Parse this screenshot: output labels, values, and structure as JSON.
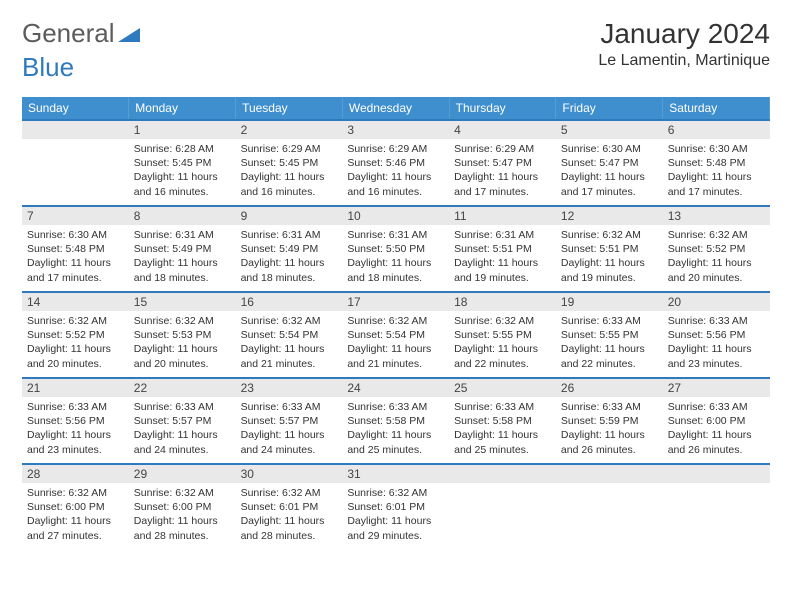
{
  "logo": {
    "word1": "General",
    "word2": "Blue",
    "icon_color": "#2f7abf",
    "text_color": "#5c5c5c"
  },
  "title": {
    "month": "January 2024",
    "location": "Le Lamentin, Martinique"
  },
  "header_bg": "#3f8fcf",
  "border_color": "#2f7abf",
  "daynum_bg": "#e9e9e9",
  "weekdays": [
    "Sunday",
    "Monday",
    "Tuesday",
    "Wednesday",
    "Thursday",
    "Friday",
    "Saturday"
  ],
  "weeks": [
    [
      null,
      {
        "n": "1",
        "sr": "Sunrise: 6:28 AM",
        "ss": "Sunset: 5:45 PM",
        "dl1": "Daylight: 11 hours",
        "dl2": "and 16 minutes."
      },
      {
        "n": "2",
        "sr": "Sunrise: 6:29 AM",
        "ss": "Sunset: 5:45 PM",
        "dl1": "Daylight: 11 hours",
        "dl2": "and 16 minutes."
      },
      {
        "n": "3",
        "sr": "Sunrise: 6:29 AM",
        "ss": "Sunset: 5:46 PM",
        "dl1": "Daylight: 11 hours",
        "dl2": "and 16 minutes."
      },
      {
        "n": "4",
        "sr": "Sunrise: 6:29 AM",
        "ss": "Sunset: 5:47 PM",
        "dl1": "Daylight: 11 hours",
        "dl2": "and 17 minutes."
      },
      {
        "n": "5",
        "sr": "Sunrise: 6:30 AM",
        "ss": "Sunset: 5:47 PM",
        "dl1": "Daylight: 11 hours",
        "dl2": "and 17 minutes."
      },
      {
        "n": "6",
        "sr": "Sunrise: 6:30 AM",
        "ss": "Sunset: 5:48 PM",
        "dl1": "Daylight: 11 hours",
        "dl2": "and 17 minutes."
      }
    ],
    [
      {
        "n": "7",
        "sr": "Sunrise: 6:30 AM",
        "ss": "Sunset: 5:48 PM",
        "dl1": "Daylight: 11 hours",
        "dl2": "and 17 minutes."
      },
      {
        "n": "8",
        "sr": "Sunrise: 6:31 AM",
        "ss": "Sunset: 5:49 PM",
        "dl1": "Daylight: 11 hours",
        "dl2": "and 18 minutes."
      },
      {
        "n": "9",
        "sr": "Sunrise: 6:31 AM",
        "ss": "Sunset: 5:49 PM",
        "dl1": "Daylight: 11 hours",
        "dl2": "and 18 minutes."
      },
      {
        "n": "10",
        "sr": "Sunrise: 6:31 AM",
        "ss": "Sunset: 5:50 PM",
        "dl1": "Daylight: 11 hours",
        "dl2": "and 18 minutes."
      },
      {
        "n": "11",
        "sr": "Sunrise: 6:31 AM",
        "ss": "Sunset: 5:51 PM",
        "dl1": "Daylight: 11 hours",
        "dl2": "and 19 minutes."
      },
      {
        "n": "12",
        "sr": "Sunrise: 6:32 AM",
        "ss": "Sunset: 5:51 PM",
        "dl1": "Daylight: 11 hours",
        "dl2": "and 19 minutes."
      },
      {
        "n": "13",
        "sr": "Sunrise: 6:32 AM",
        "ss": "Sunset: 5:52 PM",
        "dl1": "Daylight: 11 hours",
        "dl2": "and 20 minutes."
      }
    ],
    [
      {
        "n": "14",
        "sr": "Sunrise: 6:32 AM",
        "ss": "Sunset: 5:52 PM",
        "dl1": "Daylight: 11 hours",
        "dl2": "and 20 minutes."
      },
      {
        "n": "15",
        "sr": "Sunrise: 6:32 AM",
        "ss": "Sunset: 5:53 PM",
        "dl1": "Daylight: 11 hours",
        "dl2": "and 20 minutes."
      },
      {
        "n": "16",
        "sr": "Sunrise: 6:32 AM",
        "ss": "Sunset: 5:54 PM",
        "dl1": "Daylight: 11 hours",
        "dl2": "and 21 minutes."
      },
      {
        "n": "17",
        "sr": "Sunrise: 6:32 AM",
        "ss": "Sunset: 5:54 PM",
        "dl1": "Daylight: 11 hours",
        "dl2": "and 21 minutes."
      },
      {
        "n": "18",
        "sr": "Sunrise: 6:32 AM",
        "ss": "Sunset: 5:55 PM",
        "dl1": "Daylight: 11 hours",
        "dl2": "and 22 minutes."
      },
      {
        "n": "19",
        "sr": "Sunrise: 6:33 AM",
        "ss": "Sunset: 5:55 PM",
        "dl1": "Daylight: 11 hours",
        "dl2": "and 22 minutes."
      },
      {
        "n": "20",
        "sr": "Sunrise: 6:33 AM",
        "ss": "Sunset: 5:56 PM",
        "dl1": "Daylight: 11 hours",
        "dl2": "and 23 minutes."
      }
    ],
    [
      {
        "n": "21",
        "sr": "Sunrise: 6:33 AM",
        "ss": "Sunset: 5:56 PM",
        "dl1": "Daylight: 11 hours",
        "dl2": "and 23 minutes."
      },
      {
        "n": "22",
        "sr": "Sunrise: 6:33 AM",
        "ss": "Sunset: 5:57 PM",
        "dl1": "Daylight: 11 hours",
        "dl2": "and 24 minutes."
      },
      {
        "n": "23",
        "sr": "Sunrise: 6:33 AM",
        "ss": "Sunset: 5:57 PM",
        "dl1": "Daylight: 11 hours",
        "dl2": "and 24 minutes."
      },
      {
        "n": "24",
        "sr": "Sunrise: 6:33 AM",
        "ss": "Sunset: 5:58 PM",
        "dl1": "Daylight: 11 hours",
        "dl2": "and 25 minutes."
      },
      {
        "n": "25",
        "sr": "Sunrise: 6:33 AM",
        "ss": "Sunset: 5:58 PM",
        "dl1": "Daylight: 11 hours",
        "dl2": "and 25 minutes."
      },
      {
        "n": "26",
        "sr": "Sunrise: 6:33 AM",
        "ss": "Sunset: 5:59 PM",
        "dl1": "Daylight: 11 hours",
        "dl2": "and 26 minutes."
      },
      {
        "n": "27",
        "sr": "Sunrise: 6:33 AM",
        "ss": "Sunset: 6:00 PM",
        "dl1": "Daylight: 11 hours",
        "dl2": "and 26 minutes."
      }
    ],
    [
      {
        "n": "28",
        "sr": "Sunrise: 6:32 AM",
        "ss": "Sunset: 6:00 PM",
        "dl1": "Daylight: 11 hours",
        "dl2": "and 27 minutes."
      },
      {
        "n": "29",
        "sr": "Sunrise: 6:32 AM",
        "ss": "Sunset: 6:00 PM",
        "dl1": "Daylight: 11 hours",
        "dl2": "and 28 minutes."
      },
      {
        "n": "30",
        "sr": "Sunrise: 6:32 AM",
        "ss": "Sunset: 6:01 PM",
        "dl1": "Daylight: 11 hours",
        "dl2": "and 28 minutes."
      },
      {
        "n": "31",
        "sr": "Sunrise: 6:32 AM",
        "ss": "Sunset: 6:01 PM",
        "dl1": "Daylight: 11 hours",
        "dl2": "and 29 minutes."
      },
      null,
      null,
      null
    ]
  ]
}
